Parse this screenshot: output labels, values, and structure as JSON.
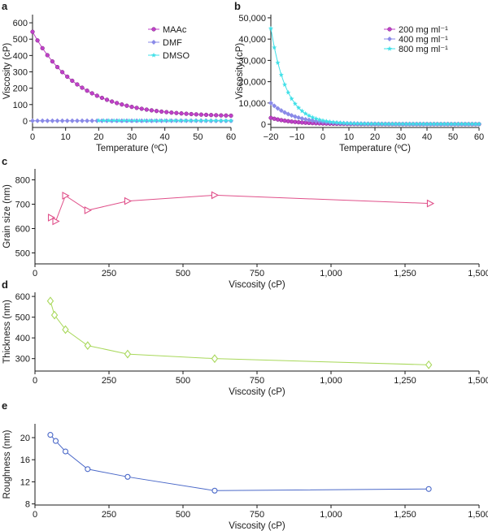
{
  "figure_labels": [
    "a",
    "b",
    "c",
    "d",
    "e"
  ],
  "chart_data": [
    {
      "id": "a",
      "type": "line",
      "panel_label": "a",
      "xlabel": "Temperature (ºC)",
      "ylabel": "Viscosity (cP)",
      "xlim": [
        0,
        60
      ],
      "ylim": [
        -40,
        650
      ],
      "xticks": [
        0,
        10,
        20,
        30,
        40,
        50,
        60
      ],
      "xtick_labels": [
        "0",
        "10",
        "20",
        "30",
        "40",
        "50",
        "60"
      ],
      "yticks": [
        0,
        100,
        200,
        300,
        400,
        500,
        600
      ],
      "ytick_labels": [
        "0",
        "100",
        "200",
        "300",
        "400",
        "500",
        "600"
      ],
      "legend_position": "top-right",
      "series": [
        {
          "name": "MAAc",
          "color": "#c040c8",
          "marker": "circle",
          "curve": {
            "x_start": 0,
            "x_end": 60,
            "n": 41,
            "y0": 545,
            "y_inf": 25,
            "tau": 14
          }
        },
        {
          "name": "DMF",
          "color": "#8a8ae8",
          "marker": "diamond",
          "curve": {
            "x_start": 0,
            "x_end": 60,
            "n": 41,
            "y0": 1.2,
            "y_inf": 0.6,
            "tau": 20
          }
        },
        {
          "name": "DMSO",
          "color": "#40e0e8",
          "marker": "star",
          "curve": {
            "x_start": 20,
            "x_end": 60,
            "n": 27,
            "y0": 2.3,
            "y_inf": 1.2,
            "tau": 20
          }
        }
      ]
    },
    {
      "id": "b",
      "type": "line",
      "panel_label": "b",
      "xlabel": "Temperature (ºC)",
      "ylabel": "Viscosity (cP)",
      "xlim": [
        -20,
        60
      ],
      "ylim": [
        -1500,
        51500
      ],
      "xticks": [
        -20,
        -10,
        0,
        10,
        20,
        30,
        40,
        50,
        60
      ],
      "xtick_labels": [
        "−20",
        "−10",
        "0",
        "10",
        "20",
        "30",
        "40",
        "50",
        "60"
      ],
      "yticks": [
        0,
        10000,
        20000,
        30000,
        40000,
        50000
      ],
      "ytick_labels": [
        "0",
        "10,000",
        "20,000",
        "30,000",
        "40,000",
        "50,000"
      ],
      "legend_position": "top-right",
      "series": [
        {
          "name": "200 mg ml⁻¹",
          "color": "#c040c8",
          "marker": "circle",
          "curve": {
            "x_start": -20,
            "x_end": 60,
            "n": 61,
            "y0": 3000,
            "y_inf": 40,
            "tau": 9
          }
        },
        {
          "name": "400 mg ml⁻¹",
          "color": "#8a8ae8",
          "marker": "diamond",
          "curve": {
            "x_start": -20,
            "x_end": 60,
            "n": 61,
            "y0": 10000,
            "y_inf": 80,
            "tau": 9
          }
        },
        {
          "name": "800 mg ml⁻¹",
          "color": "#40e0e8",
          "marker": "star",
          "curve": {
            "x_start": -20,
            "x_end": 60,
            "n": 61,
            "y0": 45000,
            "y_inf": 150,
            "tau": 6
          }
        }
      ]
    },
    {
      "id": "c",
      "type": "line",
      "panel_label": "c",
      "xlabel": "Viscosity (cP)",
      "ylabel": "Grain size (nm)",
      "xlim": [
        0,
        1500
      ],
      "ylim": [
        455,
        845
      ],
      "xticks": [
        0,
        250,
        500,
        750,
        1000,
        1250,
        1500
      ],
      "xtick_labels": [
        "0",
        "250",
        "500",
        "750",
        "1,000",
        "1,250",
        "1,500"
      ],
      "yticks": [
        500,
        600,
        700,
        800
      ],
      "ytick_labels": [
        "500",
        "600",
        "700",
        "800"
      ],
      "series": [
        {
          "name": "grain size",
          "color": "#e0508a",
          "marker": "triangle-right",
          "x": [
            55,
            70,
            103,
            178,
            313,
            607,
            1335
          ],
          "y": [
            645,
            630,
            735,
            675,
            713,
            737,
            703
          ]
        }
      ]
    },
    {
      "id": "d",
      "type": "line",
      "panel_label": "d",
      "xlabel": "Viscosity (cP)",
      "ylabel": "Thickness (nm)",
      "xlim": [
        0,
        1500
      ],
      "ylim": [
        240,
        620
      ],
      "xticks": [
        0,
        250,
        500,
        750,
        1000,
        1250,
        1500
      ],
      "xtick_labels": [
        "0",
        "250",
        "500",
        "750",
        "1,000",
        "1,250",
        "1,500"
      ],
      "yticks": [
        300,
        400,
        500,
        600
      ],
      "ytick_labels": [
        "300",
        "400",
        "500",
        "600"
      ],
      "series": [
        {
          "name": "thickness",
          "color": "#a8d85a",
          "marker": "diamond-open",
          "x": [
            52,
            66,
            103,
            178,
            313,
            607,
            1330
          ],
          "y": [
            578,
            510,
            440,
            363,
            322,
            300,
            270
          ]
        }
      ]
    },
    {
      "id": "e",
      "type": "line",
      "panel_label": "e",
      "xlabel": "Viscosity (cP)",
      "ylabel": "Roughness (nm)",
      "xlim": [
        0,
        1500
      ],
      "ylim": [
        7.8,
        22.5
      ],
      "xticks": [
        0,
        250,
        500,
        750,
        1000,
        1250,
        1500
      ],
      "xtick_labels": [
        "0",
        "250",
        "500",
        "750",
        "1,000",
        "1,250",
        "1,500"
      ],
      "yticks": [
        8,
        12,
        16,
        20
      ],
      "ytick_labels": [
        "8",
        "12",
        "16",
        "20"
      ],
      "series": [
        {
          "name": "roughness",
          "color": "#4a68c8",
          "marker": "circle-open",
          "x": [
            52,
            70,
            103,
            178,
            313,
            607,
            1330
          ],
          "y": [
            20.5,
            19.4,
            17.5,
            14.3,
            12.9,
            10.4,
            10.7
          ]
        }
      ]
    }
  ]
}
